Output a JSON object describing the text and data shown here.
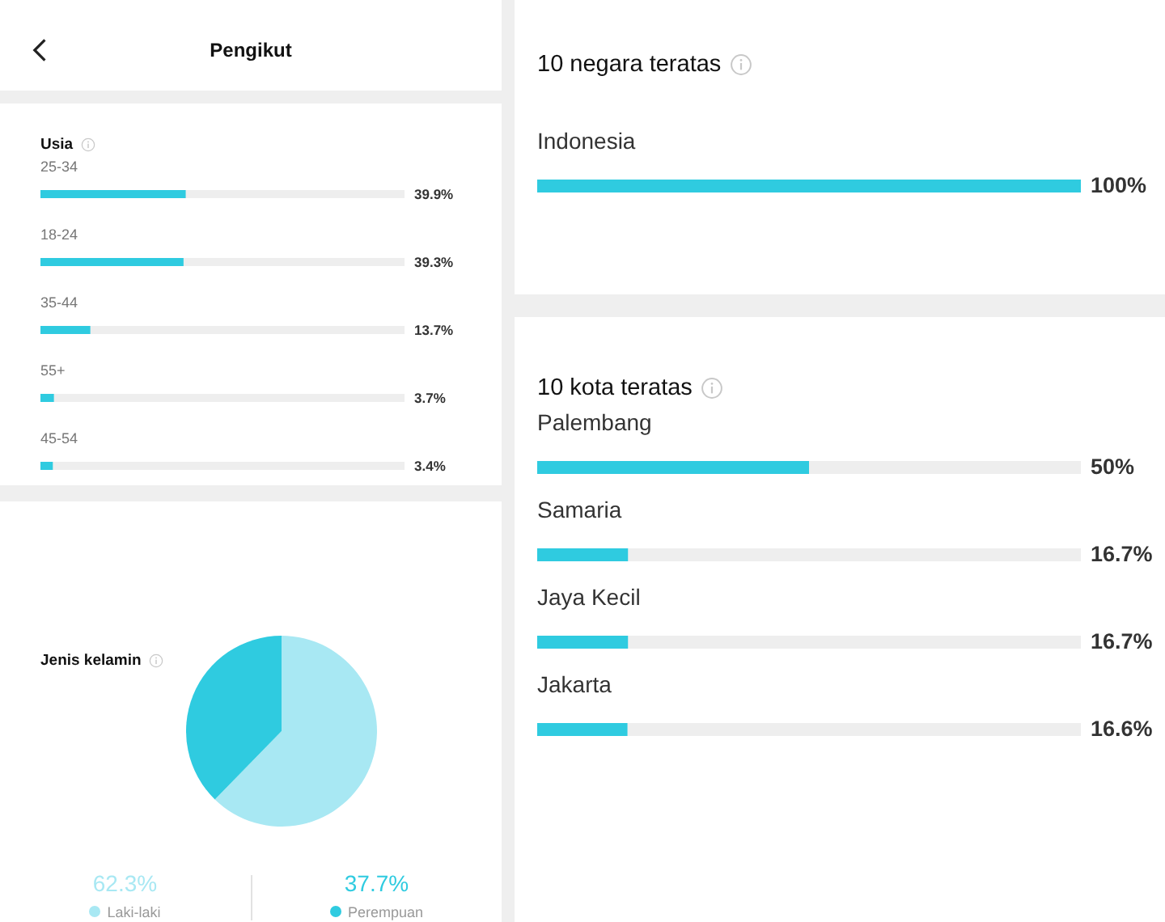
{
  "chart_data": [
    {
      "type": "bar",
      "orientation": "horizontal",
      "title": "Usia",
      "annotations": [
        "Pengikut"
      ],
      "categories": [
        "25-34",
        "18-24",
        "35-44",
        "55+",
        "45-54"
      ],
      "values": [
        39.9,
        39.3,
        13.7,
        3.7,
        3.4
      ],
      "value_labels": [
        "39.9%",
        "39.3%",
        "13.7%",
        "3.7%",
        "3.4%"
      ],
      "color": "#2fcbe0",
      "xlim": [
        0,
        100
      ],
      "tick_labels": "y"
    },
    {
      "type": "pie",
      "title": "Jenis kelamin",
      "categories": [
        "Laki-laki",
        "Perempuan"
      ],
      "values": [
        62.3,
        37.7
      ],
      "colors": [
        "#a8e8f3",
        "#2fcbe0"
      ],
      "value_labels": [
        "62.3%",
        "37.7%"
      ],
      "legend": "bottom"
    },
    {
      "type": "bar",
      "orientation": "horizontal",
      "title": "10 negara teratas",
      "categories": [
        "Indonesia"
      ],
      "values": [
        100
      ],
      "value_labels": [
        "100%"
      ],
      "color": "#2fcbe0",
      "tick_labels": "y"
    },
    {
      "type": "bar",
      "orientation": "horizontal",
      "title": "10 kota teratas",
      "categories": [
        "Palembang",
        "Samaria",
        "Jaya Kecil",
        "Jakarta"
      ],
      "values": [
        50,
        16.7,
        16.7,
        16.6
      ],
      "value_labels": [
        "50%",
        "16.7%",
        "16.7%",
        "16.6%"
      ],
      "color": "#2fcbe0",
      "xlim": [
        0,
        100
      ],
      "tick_labels": "y"
    }
  ]
}
